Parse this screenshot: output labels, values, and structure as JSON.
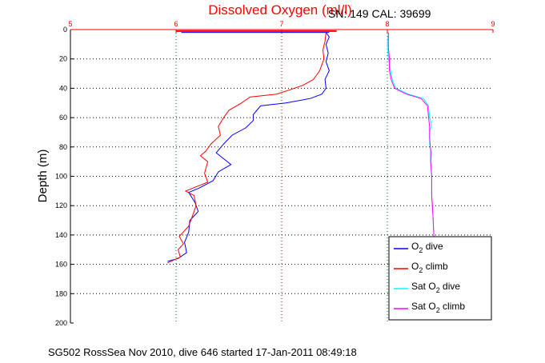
{
  "chart_data": {
    "type": "line",
    "title": "Dissolved Oxygen (ml/l)",
    "title_color": "#ff0000",
    "annotation": "SN: 149  CAL: 39699",
    "footer": "SG502 RossSea Nov 2010, dive 646 started 17-Jan-2011 08:49:18",
    "ylabel": "Depth (m)",
    "xlabel": "",
    "xlim": [
      5,
      9
    ],
    "ylim": [
      0,
      200
    ],
    "y_reversed": true,
    "xticks": [
      "5",
      "6",
      "7",
      "8",
      "9"
    ],
    "xtick_color": "#ff0000",
    "yticks": [
      "0",
      "20",
      "40",
      "60",
      "80",
      "100",
      "120",
      "140",
      "160",
      "180",
      "200"
    ],
    "grid": true,
    "grid_style": "dotted",
    "legend_position": "bottom-right",
    "series": [
      {
        "name": "O2 dive",
        "legend_main": "O",
        "legend_sub": "2",
        "legend_rest": " dive",
        "color": "#0000ff",
        "points": [
          [
            7.42,
            2
          ],
          [
            7.45,
            5
          ],
          [
            7.42,
            10
          ],
          [
            7.44,
            16
          ],
          [
            7.42,
            22
          ],
          [
            7.45,
            28
          ],
          [
            7.41,
            34
          ],
          [
            7.42,
            40
          ],
          [
            7.38,
            44
          ],
          [
            7.27,
            47
          ],
          [
            7.04,
            50
          ],
          [
            6.8,
            52
          ],
          [
            6.73,
            58
          ],
          [
            6.73,
            62
          ],
          [
            6.66,
            67
          ],
          [
            6.53,
            72
          ],
          [
            6.45,
            78
          ],
          [
            6.38,
            84
          ],
          [
            6.45,
            88
          ],
          [
            6.52,
            92
          ],
          [
            6.4,
            97
          ],
          [
            6.35,
            103
          ],
          [
            6.22,
            108
          ],
          [
            6.12,
            111
          ],
          [
            6.18,
            118
          ],
          [
            6.21,
            124
          ],
          [
            6.13,
            130
          ],
          [
            6.12,
            138
          ],
          [
            6.08,
            145
          ],
          [
            6.1,
            152
          ],
          [
            6.02,
            156
          ],
          [
            5.92,
            158
          ]
        ]
      },
      {
        "name": "O2 climb",
        "legend_main": "O",
        "legend_sub": "2",
        "legend_rest": " climb",
        "color": "#ff0000",
        "points": [
          [
            7.42,
            2
          ],
          [
            7.41,
            8
          ],
          [
            7.39,
            14
          ],
          [
            7.4,
            20
          ],
          [
            7.36,
            28
          ],
          [
            7.3,
            34
          ],
          [
            7.2,
            38
          ],
          [
            7.08,
            41
          ],
          [
            6.95,
            44
          ],
          [
            6.7,
            46
          ],
          [
            6.62,
            50
          ],
          [
            6.5,
            55
          ],
          [
            6.45,
            60
          ],
          [
            6.4,
            66
          ],
          [
            6.42,
            72
          ],
          [
            6.33,
            78
          ],
          [
            6.28,
            83
          ],
          [
            6.23,
            86
          ],
          [
            6.3,
            90
          ],
          [
            6.27,
            98
          ],
          [
            6.3,
            104
          ],
          [
            6.09,
            110
          ],
          [
            6.17,
            113
          ],
          [
            6.19,
            120
          ],
          [
            6.15,
            128
          ],
          [
            6.12,
            134
          ],
          [
            6.03,
            141
          ],
          [
            6.07,
            146
          ],
          [
            6.02,
            150
          ],
          [
            6.04,
            155
          ],
          [
            5.92,
            159
          ]
        ]
      },
      {
        "name": "Sat O2 dive",
        "legend_main": "Sat O",
        "legend_sub": "2",
        "legend_rest": " dive",
        "color": "#00ffff",
        "points": [
          [
            8.01,
            2
          ],
          [
            8.0,
            10
          ],
          [
            8.01,
            20
          ],
          [
            8.03,
            28
          ],
          [
            8.05,
            35
          ],
          [
            8.08,
            40
          ],
          [
            8.2,
            44
          ],
          [
            8.34,
            47
          ],
          [
            8.39,
            52
          ],
          [
            8.4,
            60
          ],
          [
            8.42,
            65
          ],
          [
            8.4,
            70
          ],
          [
            8.4,
            78
          ],
          [
            8.42,
            84
          ],
          [
            8.41,
            92
          ],
          [
            8.42,
            100
          ],
          [
            8.42,
            115
          ],
          [
            8.43,
            125
          ],
          [
            8.44,
            140
          ],
          [
            8.44,
            150
          ]
        ]
      },
      {
        "name": "Sat O2 climb",
        "legend_main": "Sat O",
        "legend_sub": "2",
        "legend_rest": " climb",
        "color": "#ff00ff",
        "points": [
          [
            8.01,
            2
          ],
          [
            8.01,
            12
          ],
          [
            8.02,
            20
          ],
          [
            8.02,
            28
          ],
          [
            8.04,
            35
          ],
          [
            8.07,
            40
          ],
          [
            8.18,
            44
          ],
          [
            8.32,
            47
          ],
          [
            8.38,
            52
          ],
          [
            8.39,
            60
          ],
          [
            8.4,
            66
          ],
          [
            8.4,
            74
          ],
          [
            8.41,
            82
          ],
          [
            8.41,
            90
          ],
          [
            8.42,
            100
          ],
          [
            8.42,
            112
          ],
          [
            8.43,
            125
          ],
          [
            8.44,
            140
          ],
          [
            8.44,
            150
          ]
        ]
      }
    ]
  }
}
